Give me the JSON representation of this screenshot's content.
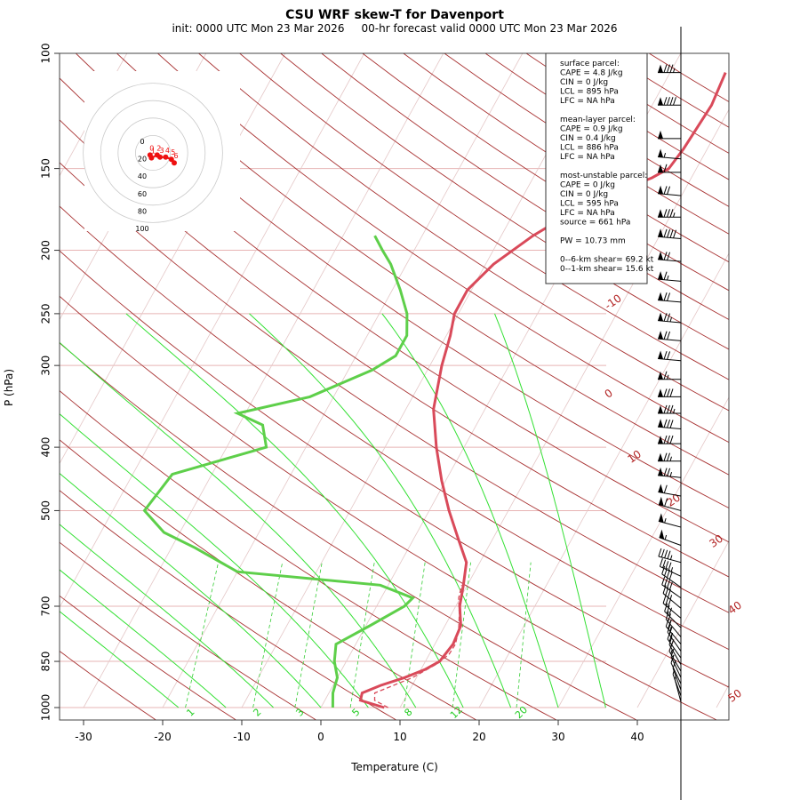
{
  "chart_data": {
    "type": "skew-t",
    "title": "CSU WRF skew-T for Davenport",
    "subtitle": "init: 0000 UTC Mon 23 Mar 2026     00-hr forecast valid 0000 UTC Mon 23 Mar 2026",
    "xlabel": "Temperature (C)",
    "ylabel": "P (hPa)",
    "xlim": [
      -30,
      40
    ],
    "ylim": [
      1000,
      100
    ],
    "pressure_ticks": [
      100,
      150,
      200,
      250,
      300,
      400,
      500,
      700,
      850,
      1000
    ],
    "temperature_ticks": [
      -30,
      -20,
      -10,
      0,
      10,
      20,
      30,
      40
    ],
    "isotherm_labels": [
      "-10",
      "0",
      "10",
      "20",
      "30",
      "40",
      "50"
    ],
    "mixing_ratio_labels": [
      "1",
      "2",
      "3",
      "5",
      "8",
      "12",
      "20"
    ],
    "temperature_profile": [
      {
        "p": 1000,
        "t": 8.0
      },
      {
        "p": 975,
        "t": 4.5
      },
      {
        "p": 950,
        "t": 4.2
      },
      {
        "p": 925,
        "t": 6.0
      },
      {
        "p": 900,
        "t": 8.5
      },
      {
        "p": 875,
        "t": 10.5
      },
      {
        "p": 850,
        "t": 11.8
      },
      {
        "p": 800,
        "t": 12.3
      },
      {
        "p": 750,
        "t": 12.0
      },
      {
        "p": 700,
        "t": 10.5
      },
      {
        "p": 650,
        "t": 9.5
      },
      {
        "p": 600,
        "t": 8.3
      },
      {
        "p": 550,
        "t": 5.5
      },
      {
        "p": 500,
        "t": 2.5
      },
      {
        "p": 450,
        "t": -0.5
      },
      {
        "p": 400,
        "t": -3.5
      },
      {
        "p": 350,
        "t": -6.5
      },
      {
        "p": 300,
        "t": -8.5
      },
      {
        "p": 270,
        "t": -9.5
      },
      {
        "p": 250,
        "t": -10.5
      },
      {
        "p": 230,
        "t": -10.5
      },
      {
        "p": 210,
        "t": -9.0
      },
      {
        "p": 190,
        "t": -6.0
      },
      {
        "p": 170,
        "t": -1.5
      },
      {
        "p": 155,
        "t": 5.0
      },
      {
        "p": 150,
        "t": 6.5
      },
      {
        "p": 140,
        "t": 7.0
      },
      {
        "p": 120,
        "t": 7.5
      },
      {
        "p": 107,
        "t": 7.0
      }
    ],
    "dewpoint_profile": [
      {
        "p": 1000,
        "t": 1.5
      },
      {
        "p": 950,
        "t": 0.5
      },
      {
        "p": 900,
        "t": 0.0
      },
      {
        "p": 850,
        "t": -1.5
      },
      {
        "p": 800,
        "t": -2.5
      },
      {
        "p": 750,
        "t": 0.5
      },
      {
        "p": 700,
        "t": 3.5
      },
      {
        "p": 680,
        "t": 4.0
      },
      {
        "p": 650,
        "t": -1.0
      },
      {
        "p": 620,
        "t": -20.0
      },
      {
        "p": 570,
        "t": -27.0
      },
      {
        "p": 540,
        "t": -32.0
      },
      {
        "p": 500,
        "t": -36.0
      },
      {
        "p": 440,
        "t": -35.0
      },
      {
        "p": 400,
        "t": -25.0
      },
      {
        "p": 370,
        "t": -27.0
      },
      {
        "p": 355,
        "t": -31.0
      },
      {
        "p": 335,
        "t": -23.0
      },
      {
        "p": 305,
        "t": -17.0
      },
      {
        "p": 290,
        "t": -15.0
      },
      {
        "p": 270,
        "t": -15.0
      },
      {
        "p": 250,
        "t": -16.5
      },
      {
        "p": 230,
        "t": -19.0
      },
      {
        "p": 210,
        "t": -22.0
      },
      {
        "p": 200,
        "t": -24.0
      },
      {
        "p": 190,
        "t": -26.0
      }
    ],
    "parcel_profile": [
      {
        "p": 1000,
        "t": 8.5
      },
      {
        "p": 975,
        "t": 6.3
      },
      {
        "p": 950,
        "t": 5.8
      },
      {
        "p": 900,
        "t": 9.5
      },
      {
        "p": 860,
        "t": 11.5
      },
      {
        "p": 830,
        "t": 12.5
      },
      {
        "p": 800,
        "t": 12.6
      },
      {
        "p": 760,
        "t": 12.0
      },
      {
        "p": 720,
        "t": 11.0
      },
      {
        "p": 680,
        "t": 9.8
      },
      {
        "p": 650,
        "t": 9.3
      }
    ],
    "hodograph": {
      "ring_labels": [
        "0",
        "20",
        "40",
        "60",
        "80",
        "100"
      ],
      "point_labels": [
        "0",
        "1",
        "2",
        "3",
        "4",
        "5",
        "6"
      ],
      "u": [
        -4,
        -2,
        6,
        10,
        18,
        26,
        30
      ],
      "v": [
        3,
        7,
        3,
        6,
        6,
        9,
        14
      ]
    },
    "indices_box": [
      "surface parcel:",
      "CAPE = 4.8 J/kg",
      "CIN = 0 J/kg",
      "LCL = 895 hPa",
      "LFC = NA hPa",
      "",
      "mean-layer parcel:",
      "CAPE = 0.9 J/kg",
      "CIN = 0.4 J/kg",
      "LCL = 886 hPa",
      "LFC = NA hPa",
      "",
      "most-unstable parcel:",
      "CAPE = 0 J/kg",
      "CIN = 0 J/kg",
      "LCL = 595 hPa",
      "LFC = NA hPa",
      "source = 661 hPa",
      "",
      "PW =  10.73 mm",
      "",
      "0--6-km shear= 69.2 kt",
      "0--1-km shear= 15.6 kt"
    ],
    "wind_barbs": [
      {
        "p": 107,
        "speed": 85,
        "dir": 270
      },
      {
        "p": 120,
        "speed": 90,
        "dir": 270
      },
      {
        "p": 135,
        "speed": 50,
        "dir": 270
      },
      {
        "p": 145,
        "speed": 55,
        "dir": 275
      },
      {
        "p": 152,
        "speed": 60,
        "dir": 270
      },
      {
        "p": 165,
        "speed": 70,
        "dir": 275
      },
      {
        "p": 178,
        "speed": 85,
        "dir": 270
      },
      {
        "p": 192,
        "speed": 90,
        "dir": 275
      },
      {
        "p": 208,
        "speed": 70,
        "dir": 275
      },
      {
        "p": 223,
        "speed": 65,
        "dir": 275
      },
      {
        "p": 240,
        "speed": 70,
        "dir": 275
      },
      {
        "p": 258,
        "speed": 75,
        "dir": 275
      },
      {
        "p": 275,
        "speed": 70,
        "dir": 275
      },
      {
        "p": 295,
        "speed": 70,
        "dir": 275
      },
      {
        "p": 315,
        "speed": 65,
        "dir": 270
      },
      {
        "p": 335,
        "speed": 80,
        "dir": 270
      },
      {
        "p": 355,
        "speed": 85,
        "dir": 270
      },
      {
        "p": 375,
        "speed": 80,
        "dir": 275
      },
      {
        "p": 395,
        "speed": 80,
        "dir": 270
      },
      {
        "p": 420,
        "speed": 75,
        "dir": 270
      },
      {
        "p": 445,
        "speed": 75,
        "dir": 275
      },
      {
        "p": 475,
        "speed": 60,
        "dir": 280
      },
      {
        "p": 500,
        "speed": 60,
        "dir": 285
      },
      {
        "p": 530,
        "speed": 55,
        "dir": 285
      },
      {
        "p": 565,
        "speed": 55,
        "dir": 290
      },
      {
        "p": 600,
        "speed": 45,
        "dir": 285
      },
      {
        "p": 630,
        "speed": 45,
        "dir": 295
      },
      {
        "p": 655,
        "speed": 40,
        "dir": 305
      },
      {
        "p": 680,
        "speed": 40,
        "dir": 305
      },
      {
        "p": 705,
        "speed": 35,
        "dir": 310
      },
      {
        "p": 730,
        "speed": 30,
        "dir": 310
      },
      {
        "p": 755,
        "speed": 30,
        "dir": 315
      },
      {
        "p": 780,
        "speed": 25,
        "dir": 320
      },
      {
        "p": 800,
        "speed": 25,
        "dir": 320
      },
      {
        "p": 820,
        "speed": 25,
        "dir": 325
      },
      {
        "p": 840,
        "speed": 20,
        "dir": 325
      },
      {
        "p": 860,
        "speed": 20,
        "dir": 330
      },
      {
        "p": 880,
        "speed": 15,
        "dir": 330
      },
      {
        "p": 900,
        "speed": 15,
        "dir": 335
      },
      {
        "p": 920,
        "speed": 10,
        "dir": 335
      },
      {
        "p": 940,
        "speed": 10,
        "dir": 340
      },
      {
        "p": 960,
        "speed": 5,
        "dir": 340
      },
      {
        "p": 980,
        "speed": 5,
        "dir": 345
      }
    ]
  }
}
